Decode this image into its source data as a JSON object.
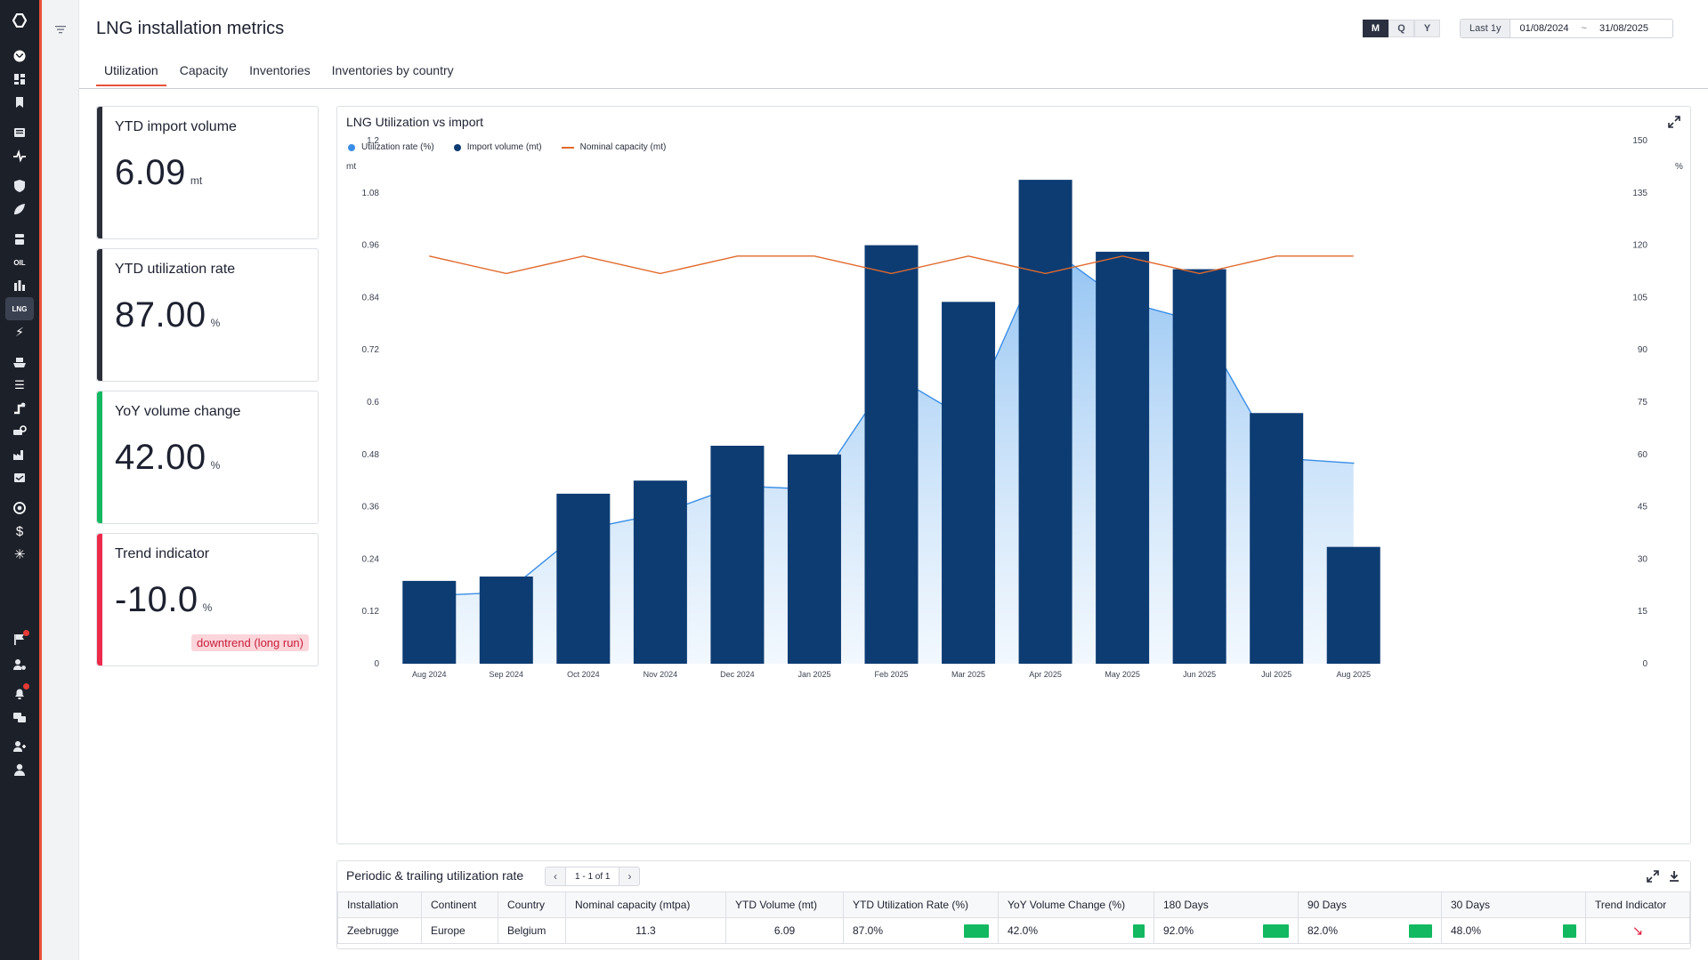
{
  "page": {
    "title": "LNG installation metrics"
  },
  "period_selector": {
    "options": [
      "M",
      "Q",
      "Y"
    ],
    "selected": "M"
  },
  "date_range": {
    "preset": "Last 1y",
    "from": "01/08/2024",
    "separator": "~",
    "to": "31/08/2025"
  },
  "tabs": [
    {
      "label": "Utilization",
      "selected": true
    },
    {
      "label": "Capacity"
    },
    {
      "label": "Inventories"
    },
    {
      "label": "Inventories by country"
    }
  ],
  "rail": {
    "icons": [
      "logo-icon",
      "globe-icon",
      "dashboard-icon",
      "bookmark-icon",
      "news-icon",
      "pulse-icon",
      "shield-icon",
      "leaf-icon",
      "refinery-icon",
      "oil-icon",
      "buildings-icon",
      "lng-icon",
      "power-icon",
      "ship-icon",
      "list-icon",
      "pipeline-icon",
      "search-vehicle-icon",
      "factory-icon",
      "inbox-icon",
      "satellite-icon",
      "dollar-icon",
      "snowflake-icon",
      "flag-icon",
      "user-settings-icon",
      "bell-icon",
      "chat-icon",
      "team-icon",
      "user-icon"
    ]
  },
  "kpis": [
    {
      "title": "YTD import volume",
      "value": "6.09",
      "unit": "mt",
      "accent": "#2a2f3a"
    },
    {
      "title": "YTD utilization rate",
      "value": "87.00",
      "unit": "%",
      "accent": "#2a2f3a"
    },
    {
      "title": "YoY volume change",
      "value": "42.00",
      "unit": "%",
      "accent": "#12b961"
    },
    {
      "title": "Trend indicator",
      "value": "-10.0",
      "unit": "%",
      "accent": "#ee2a4b",
      "badge": "downtrend (long run)"
    }
  ],
  "chart": {
    "title": "LNG Utilization vs import",
    "legend": [
      {
        "label": "Utilization rate (%)",
        "color": "#3a8ee6",
        "shape": "dot"
      },
      {
        "label": "Import volume (mt)",
        "color": "#0d3c73",
        "shape": "dot"
      },
      {
        "label": "Nominal capacity (mt)",
        "color": "#e06a2c",
        "shape": "line"
      }
    ],
    "left_axis_unit": "mt",
    "right_axis_unit": "%"
  },
  "chart_data": {
    "type": "bar",
    "title": "LNG Utilization vs import",
    "categories": [
      "Aug 2024",
      "Sep 2024",
      "Oct 2024",
      "Nov 2024",
      "Dec 2024",
      "Jan 2025",
      "Feb 2025",
      "Mar 2025",
      "Apr 2025",
      "May 2025",
      "Jun 2025",
      "Jul 2025",
      "Aug 2025"
    ],
    "ylim_left": [
      0,
      1.2
    ],
    "yticks_left": [
      "0",
      "0.12",
      "0.24",
      "0.36",
      "0.48",
      "0.6",
      "0.72",
      "0.84",
      "0.96",
      "1.08",
      "1.2"
    ],
    "ylim_right": [
      0,
      150
    ],
    "yticks_right": [
      "0",
      "15",
      "30",
      "45",
      "60",
      "75",
      "90",
      "105",
      "120",
      "135",
      "150"
    ],
    "series": [
      {
        "name": "Import volume (mt)",
        "type": "bar",
        "axis": "left",
        "color": "#0d3c73",
        "values": [
          0.19,
          0.2,
          0.39,
          0.42,
          0.5,
          0.48,
          0.96,
          0.83,
          1.11,
          0.945,
          0.905,
          0.575,
          0.268
        ]
      },
      {
        "name": "Utilization rate (%)",
        "type": "area",
        "axis": "right",
        "color": "#3a8ee6",
        "values": [
          19.5,
          20.5,
          38.5,
          43,
          51,
          50,
          83,
          70,
          120,
          104,
          98,
          59,
          57.5
        ]
      },
      {
        "name": "Nominal capacity (mt)",
        "type": "line",
        "axis": "left",
        "color": "#e06a2c",
        "values": [
          0.935,
          0.895,
          0.935,
          0.895,
          0.935,
          0.935,
          0.895,
          0.935,
          0.895,
          0.935,
          0.895,
          0.935,
          0.935
        ]
      }
    ]
  },
  "table": {
    "title": "Periodic & trailing utilization rate",
    "pager": "1 - 1 of 1",
    "columns": [
      "Installation",
      "Continent",
      "Country",
      "Nominal capacity (mtpa)",
      "YTD Volume (mt)",
      "YTD Utilization Rate (%)",
      "YoY Volume Change (%)",
      "180 Days",
      "90 Days",
      "30 Days",
      "Trend Indicator"
    ],
    "rows": [
      {
        "installation": "Zeebrugge",
        "continent": "Europe",
        "country": "Belgium",
        "nominal_capacity": "11.3",
        "ytd_volume": "6.09",
        "ytd_util": "87.0%",
        "ytd_util_frac": 0.87,
        "yoy_change": "42.0%",
        "yoy_change_frac": 0.42,
        "d180": "92.0%",
        "d180_frac": 0.92,
        "d90": "82.0%",
        "d90_frac": 0.82,
        "d30": "48.0%",
        "d30_frac": 0.48,
        "trend_icon": "trend-down-arrow-icon"
      }
    ]
  }
}
